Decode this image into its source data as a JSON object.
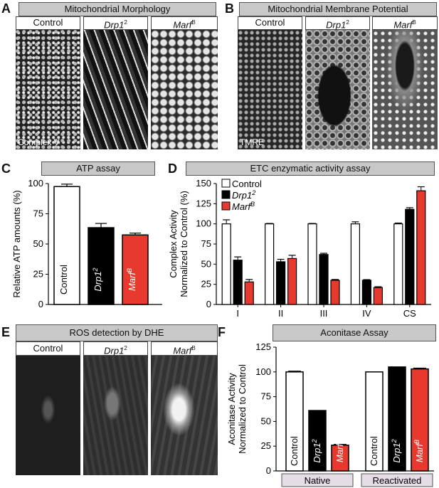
{
  "panels": {
    "A": {
      "label": "A",
      "title": "Mitochondrial Morphology",
      "columns": [
        "Control",
        "Drp1",
        "Marf"
      ],
      "stain_label": "Complex V"
    },
    "B": {
      "label": "B",
      "title": "Mitochondrial Membrane Potential",
      "columns": [
        "Control",
        "Drp1",
        "Marf"
      ],
      "stain_label": "TMRE"
    },
    "C": {
      "label": "C",
      "title": "ATP assay"
    },
    "D": {
      "label": "D",
      "title": "ETC enzymatic activity assay"
    },
    "E": {
      "label": "E",
      "title": "ROS detection by DHE",
      "columns": [
        "Control",
        "Drp1",
        "Marf"
      ]
    },
    "F": {
      "label": "F",
      "title": "Aconitase Assay"
    }
  },
  "superscripts": {
    "drp1": "2",
    "marf": "B"
  },
  "colors": {
    "control": "#ffffff",
    "drp1": "#000000",
    "marf": "#e8392f",
    "title_bg": "#c8c8c8"
  },
  "chart_data": [
    {
      "id": "C",
      "type": "bar",
      "title": "ATP assay",
      "ylabel": "Relative ATP amounts (%)",
      "ylim": [
        0,
        100
      ],
      "yticks": [
        0,
        25,
        50,
        75,
        100
      ],
      "categories": [
        "Control",
        "Drp1",
        "Marf"
      ],
      "values": [
        97.5,
        63.5,
        57.5
      ],
      "errors": [
        2,
        3.5,
        1.5
      ],
      "colors": [
        "#ffffff",
        "#000000",
        "#e8392f"
      ]
    },
    {
      "id": "D",
      "type": "bar",
      "title": "ETC enzymatic activity assay",
      "ylabel": "Complex Activity Normalized to Control (%)",
      "ylabel_lines": [
        "Complex Activity",
        "Normalized to Control (%)"
      ],
      "ylim": [
        0,
        150
      ],
      "yticks": [
        0,
        25,
        50,
        75,
        100,
        125,
        150
      ],
      "categories": [
        "I",
        "II",
        "III",
        "IV",
        "CS"
      ],
      "legend": [
        "Control",
        "Drp1",
        "Marf"
      ],
      "series": [
        {
          "name": "Control",
          "color": "#ffffff",
          "values": [
            100,
            100,
            100,
            100,
            100
          ],
          "errors": [
            5,
            0.5,
            0.5,
            2.5,
            1
          ]
        },
        {
          "name": "Drp1",
          "color": "#000000",
          "values": [
            55,
            53,
            62,
            30,
            118
          ],
          "errors": [
            4,
            3,
            1.5,
            0.8,
            2
          ]
        },
        {
          "name": "Marf",
          "color": "#e8392f",
          "values": [
            28,
            57,
            30,
            21,
            141
          ],
          "errors": [
            3,
            4,
            1,
            1,
            5
          ]
        }
      ]
    },
    {
      "id": "F",
      "type": "bar",
      "title": "Aconitase Assay",
      "ylabel": "Aconitase Activity Normalized to Control",
      "ylabel_lines": [
        "Aconitase Activity",
        "Normalized to Control"
      ],
      "ylim": [
        0,
        125
      ],
      "yticks": [
        0,
        25,
        50,
        75,
        100,
        125
      ],
      "groups": [
        "Native",
        "Reactivated"
      ],
      "categories": [
        "Control",
        "Drp1",
        "Marf"
      ],
      "series": [
        {
          "name": "Native",
          "values": [
            100,
            61,
            26
          ],
          "errors": [
            0.8,
            0,
            0.8
          ]
        },
        {
          "name": "Reactivated",
          "values": [
            100,
            105,
            103
          ],
          "errors": [
            0,
            0,
            0.8
          ]
        }
      ],
      "colors": [
        "#ffffff",
        "#000000",
        "#e8392f"
      ]
    }
  ]
}
